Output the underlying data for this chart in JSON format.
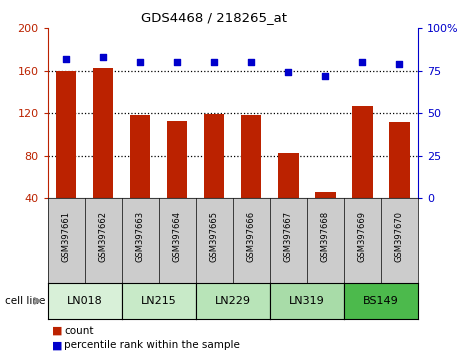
{
  "title": "GDS4468 / 218265_at",
  "samples": [
    "GSM397661",
    "GSM397662",
    "GSM397663",
    "GSM397664",
    "GSM397665",
    "GSM397666",
    "GSM397667",
    "GSM397668",
    "GSM397669",
    "GSM397670"
  ],
  "counts": [
    160,
    163,
    118,
    113,
    119,
    118,
    83,
    46,
    127,
    112
  ],
  "percentile_ranks": [
    82,
    83,
    80,
    80,
    80,
    80,
    74,
    72,
    80,
    79
  ],
  "cell_lines": [
    {
      "label": "LN018",
      "start": 0,
      "end": 1,
      "color": "#d8f0d8"
    },
    {
      "label": "LN215",
      "start": 2,
      "end": 3,
      "color": "#c8eac8"
    },
    {
      "label": "LN229",
      "start": 4,
      "end": 5,
      "color": "#b8e4b8"
    },
    {
      "label": "LN319",
      "start": 6,
      "end": 7,
      "color": "#a8dca8"
    },
    {
      "label": "BS149",
      "start": 8,
      "end": 9,
      "color": "#4cba4c"
    }
  ],
  "bar_color": "#bb2200",
  "dot_color": "#0000cc",
  "left_ylim": [
    40,
    200
  ],
  "left_yticks": [
    40,
    80,
    120,
    160,
    200
  ],
  "right_ylim": [
    0,
    100
  ],
  "right_yticks": [
    0,
    25,
    50,
    75,
    100
  ],
  "right_yticklabels": [
    "0",
    "25",
    "50",
    "75",
    "100%"
  ],
  "grid_vals": [
    80,
    120,
    160
  ],
  "sample_col_color": "#cccccc",
  "legend_count_color": "#bb2200",
  "legend_pct_color": "#0000cc",
  "background_color": "#ffffff"
}
